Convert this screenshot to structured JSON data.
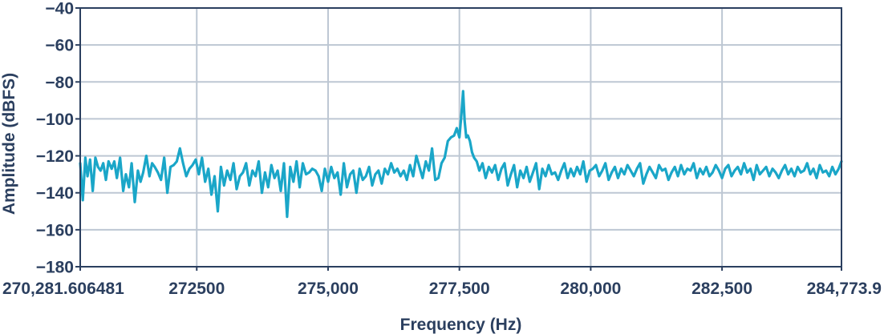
{
  "chart_data": {
    "type": "line",
    "title": "",
    "xlabel": "Frequency (Hz)",
    "ylabel": "Amplitude (dBFS)",
    "xlim": [
      270281.606481,
      284773.9
    ],
    "ylim": [
      -180,
      -40
    ],
    "grid": true,
    "colors": {
      "line": "#1aa6c8",
      "grid": "#bdc7d3",
      "frame": "#2b3f5f",
      "text": "#2b3f5f"
    },
    "x_ticks": [
      {
        "value": 270281.606481,
        "label": "270,281.606481"
      },
      {
        "value": 272500,
        "label": "272500"
      },
      {
        "value": 275000,
        "label": "275,000"
      },
      {
        "value": 277500,
        "label": "277,500"
      },
      {
        "value": 280000,
        "label": "280,000"
      },
      {
        "value": 282500,
        "label": "282,500"
      },
      {
        "value": 284773.9,
        "label": "284,773.9"
      }
    ],
    "y_ticks": [
      {
        "value": -40,
        "label": "−40"
      },
      {
        "value": -60,
        "label": "−60"
      },
      {
        "value": -80,
        "label": "−80"
      },
      {
        "value": -100,
        "label": "−100"
      },
      {
        "value": -120,
        "label": "−120"
      },
      {
        "value": -140,
        "label": "−140"
      },
      {
        "value": -160,
        "label": "−160"
      },
      {
        "value": -180,
        "label": "−180"
      }
    ],
    "series": [
      {
        "x": [
          270281.6,
          270330,
          270380,
          270420,
          270470,
          270520,
          270570,
          270620,
          270670,
          270720,
          270770,
          270820,
          270880,
          270930,
          270980,
          271040,
          271100,
          271150,
          271210,
          271260,
          271320,
          271380,
          271430,
          271480,
          271540,
          271600,
          271650,
          271700,
          271760,
          271820,
          271880,
          271940,
          272000,
          272060,
          272120,
          272180,
          272240,
          272300,
          272360,
          272420,
          272480,
          272540,
          272600,
          272660,
          272720,
          272780,
          272840,
          272900,
          272960,
          273020,
          273080,
          273140,
          273200,
          273260,
          273320,
          273380,
          273440,
          273500,
          273560,
          273620,
          273680,
          273740,
          273800,
          273860,
          273920,
          273980,
          274040,
          274100,
          274160,
          274220,
          274280,
          274340,
          274400,
          274460,
          274520,
          274580,
          274640,
          274700,
          274760,
          274820,
          274880,
          274940,
          275000,
          275060,
          275120,
          275180,
          275240,
          275300,
          275360,
          275420,
          275480,
          275540,
          275600,
          275660,
          275720,
          275780,
          275840,
          275900,
          275960,
          276020,
          276080,
          276140,
          276200,
          276260,
          276320,
          276380,
          276440,
          276500,
          276560,
          276620,
          276680,
          276740,
          276800,
          276860,
          276920,
          276980,
          277040,
          277100,
          277160,
          277220,
          277280,
          277340,
          277400,
          277450,
          277500,
          277540,
          277570,
          277600,
          277630,
          277660,
          277700,
          277740,
          277780,
          277830,
          277880,
          277940,
          278000,
          278060,
          278120,
          278180,
          278240,
          278300,
          278360,
          278420,
          278480,
          278540,
          278600,
          278660,
          278720,
          278780,
          278840,
          278900,
          278960,
          279020,
          279080,
          279140,
          279200,
          279260,
          279320,
          279380,
          279440,
          279500,
          279560,
          279620,
          279680,
          279740,
          279800,
          279860,
          279920,
          279980,
          280040,
          280100,
          280160,
          280220,
          280280,
          280340,
          280400,
          280460,
          280520,
          280580,
          280640,
          280700,
          280760,
          280820,
          280880,
          280940,
          281000,
          281060,
          281120,
          281180,
          281240,
          281300,
          281360,
          281420,
          281480,
          281540,
          281600,
          281660,
          281720,
          281780,
          281840,
          281900,
          281960,
          282020,
          282080,
          282140,
          282200,
          282260,
          282320,
          282380,
          282440,
          282500,
          282560,
          282620,
          282680,
          282740,
          282800,
          282860,
          282920,
          282980,
          283040,
          283100,
          283160,
          283220,
          283280,
          283340,
          283400,
          283460,
          283520,
          283580,
          283640,
          283700,
          283760,
          283820,
          283880,
          283940,
          284000,
          284060,
          284120,
          284180,
          284240,
          284300,
          284360,
          284420,
          284480,
          284540,
          284600,
          284660,
          284720,
          284773.9
        ],
        "y": [
          -124,
          -144,
          -121,
          -131,
          -122,
          -139,
          -121,
          -126,
          -128,
          -124,
          -133,
          -123,
          -127,
          -123,
          -132,
          -121,
          -139,
          -130,
          -137,
          -124,
          -145,
          -128,
          -134,
          -129,
          -120,
          -131,
          -124,
          -126,
          -129,
          -133,
          -121,
          -140,
          -126,
          -125,
          -123,
          -116,
          -124,
          -131,
          -127,
          -125,
          -122,
          -130,
          -121,
          -134,
          -127,
          -141,
          -131,
          -150,
          -126,
          -136,
          -128,
          -133,
          -124,
          -138,
          -131,
          -129,
          -124,
          -136,
          -128,
          -131,
          -123,
          -140,
          -129,
          -137,
          -125,
          -132,
          -128,
          -139,
          -124,
          -153,
          -126,
          -134,
          -123,
          -137,
          -124,
          -130,
          -129,
          -127,
          -128,
          -131,
          -139,
          -127,
          -134,
          -126,
          -132,
          -129,
          -141,
          -124,
          -137,
          -130,
          -128,
          -140,
          -127,
          -133,
          -131,
          -126,
          -136,
          -130,
          -128,
          -135,
          -127,
          -130,
          -124,
          -129,
          -127,
          -131,
          -128,
          -133,
          -125,
          -131,
          -120,
          -126,
          -132,
          -123,
          -128,
          -116,
          -133,
          -132,
          -124,
          -121,
          -112,
          -110,
          -109,
          -105,
          -110,
          -97,
          -85,
          -101,
          -110,
          -109,
          -112,
          -118,
          -121,
          -123,
          -128,
          -124,
          -132,
          -126,
          -129,
          -125,
          -133,
          -127,
          -124,
          -136,
          -130,
          -125,
          -137,
          -128,
          -132,
          -126,
          -134,
          -129,
          -124,
          -138,
          -127,
          -131,
          -125,
          -130,
          -129,
          -133,
          -128,
          -124,
          -132,
          -127,
          -131,
          -126,
          -130,
          -123,
          -134,
          -128,
          -127,
          -125,
          -131,
          -128,
          -124,
          -133,
          -129,
          -126,
          -132,
          -127,
          -130,
          -125,
          -128,
          -131,
          -127,
          -124,
          -135,
          -130,
          -126,
          -129,
          -132,
          -125,
          -128,
          -127,
          -133,
          -129,
          -126,
          -131,
          -125,
          -130,
          -127,
          -128,
          -124,
          -132,
          -127,
          -130,
          -126,
          -131,
          -129,
          -125,
          -128,
          -132,
          -127,
          -125,
          -131,
          -128,
          -126,
          -130,
          -124,
          -129,
          -127,
          -133,
          -125,
          -130,
          -128,
          -126,
          -131,
          -127,
          -129,
          -132,
          -128,
          -125,
          -130,
          -127,
          -131,
          -126,
          -129,
          -128,
          -124,
          -130,
          -127,
          -132,
          -125,
          -129,
          -128,
          -131,
          -126,
          -130,
          -127,
          -123
        ]
      }
    ]
  }
}
